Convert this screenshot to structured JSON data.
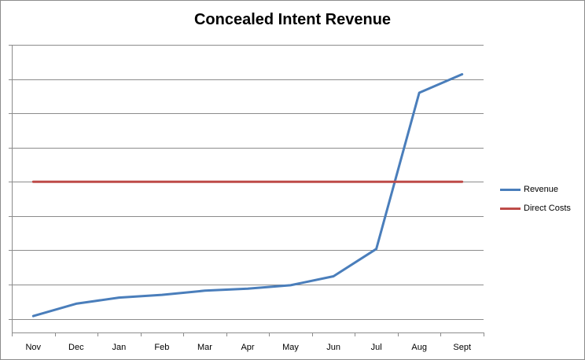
{
  "chart_data": {
    "type": "line",
    "title": "Concealed Intent Revenue",
    "categories": [
      "Nov",
      "Dec",
      "Jan",
      "Feb",
      "Mar",
      "Apr",
      "May",
      "Jun",
      "Jul",
      "Aug",
      "Sept"
    ],
    "series": [
      {
        "name": "Revenue",
        "color": "#4a7ebb",
        "values": [
          0.08,
          0.44,
          0.62,
          0.7,
          0.82,
          0.88,
          0.98,
          1.24,
          2.04,
          6.6,
          7.14
        ]
      },
      {
        "name": "Direct Costs",
        "color": "#be4b48",
        "values": [
          4.0,
          4.0,
          4.0,
          4.0,
          4.0,
          4.0,
          4.0,
          4.0,
          4.0,
          4.0,
          4.0
        ]
      }
    ],
    "ylim": [
      -0.4,
      8.0
    ],
    "y_gridlines": [
      0,
      1,
      2,
      3,
      4,
      5,
      6,
      7,
      8
    ],
    "grid": true,
    "y_tick_labels_visible": false,
    "legend_position": "right"
  }
}
